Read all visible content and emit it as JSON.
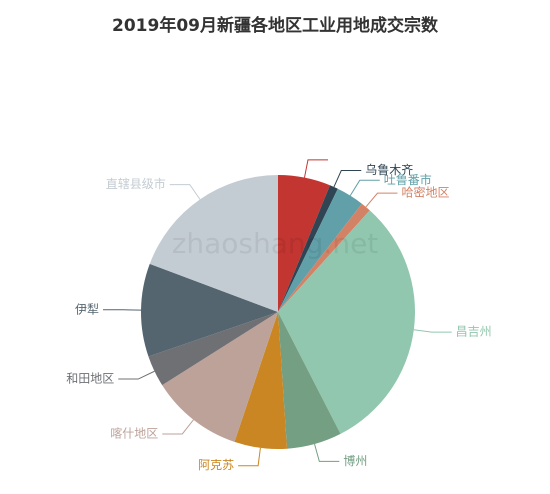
{
  "chart_data": {
    "type": "pie",
    "title": "2019年09月新疆各地区工业用地成交宗数",
    "watermark": "zhaoshang.net",
    "categories": [
      null,
      "乌鲁木齐",
      "吐鲁番市",
      "哈密地区",
      "昌吉州",
      "博州",
      "阿克苏",
      "喀什地区",
      "和田地区",
      "伊犁",
      "直辖县级市"
    ],
    "values": [
      6.2,
      1,
      3.3,
      1.2,
      30.8,
      6.5,
      6.2,
      10.9,
      3.7,
      11,
      19.3
    ],
    "colors": [
      "#c23531",
      "#2f4554",
      "#61a0a8",
      "#d48265",
      "#91c7ae",
      "#749f83",
      "#ca8622",
      "#bda29a",
      "#6e7074",
      "#546570",
      "#c4ccd3"
    ]
  }
}
